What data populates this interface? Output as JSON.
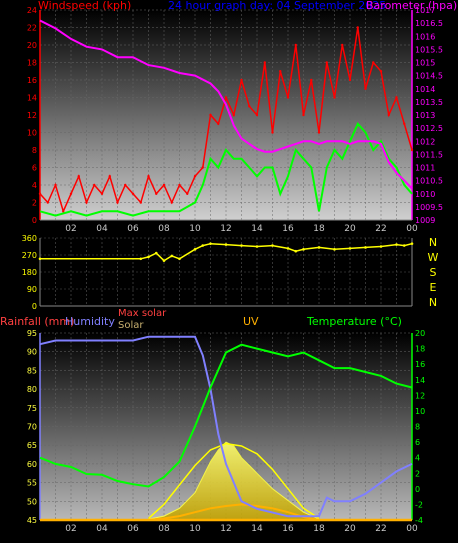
{
  "header": {
    "left_label": "Windspeed (kph)",
    "center_label": "24 hour graph day:  04 September 2025",
    "right_label": "Barometer (hpa)"
  },
  "colors": {
    "windspeed": "#ff0000",
    "windspeed_avg": "#00ff00",
    "barometer": "#ff00ff",
    "wind_dir": "#ffff00",
    "humidity": "#8080ff",
    "temperature": "#00ff00",
    "uv": "#ffb000",
    "solar": "#ffff40",
    "max_solar": "#ffff00",
    "rainfall": "#ff4040",
    "header_blue": "#0000ff"
  },
  "chart_data": [
    {
      "type": "line",
      "name": "wind-barometer",
      "xticks": [
        "02",
        "04",
        "06",
        "08",
        "10",
        "12",
        "14",
        "16",
        "18",
        "20",
        "22",
        "00"
      ],
      "xlim": [
        0,
        24
      ],
      "ylim_left": [
        0,
        24
      ],
      "yticks_left": [
        "0",
        "2",
        "4",
        "6",
        "8",
        "10",
        "12",
        "14",
        "16",
        "18",
        "20",
        "22",
        "24"
      ],
      "ylim_right": [
        1009,
        1017
      ],
      "yticks_right": [
        "1009",
        "1009.5",
        "1010",
        "1010.5",
        "1011",
        "1011.5",
        "1012",
        "1012.5",
        "1013",
        "1013.5",
        "1014",
        "1014.5",
        "1015",
        "1015.5",
        "1016",
        "1016.5",
        "1017"
      ],
      "series": [
        {
          "name": "Windspeed (kph)",
          "x": [
            0,
            0.5,
            1,
            1.5,
            2,
            2.5,
            3,
            3.5,
            4,
            4.5,
            5,
            5.5,
            6,
            6.5,
            7,
            7.5,
            8,
            8.5,
            9,
            9.5,
            10,
            10.5,
            11,
            11.5,
            12,
            12.5,
            13,
            13.5,
            14,
            14.5,
            15,
            15.5,
            16,
            16.5,
            17,
            17.5,
            18,
            18.5,
            19,
            19.5,
            20,
            20.5,
            21,
            21.5,
            22,
            22.5,
            23,
            23.5,
            24
          ],
          "values": [
            3,
            2,
            4,
            1,
            3,
            5,
            2,
            4,
            3,
            5,
            2,
            4,
            3,
            2,
            5,
            3,
            4,
            2,
            4,
            3,
            5,
            6,
            12,
            11,
            14,
            12,
            16,
            13,
            12,
            18,
            10,
            17,
            14,
            20,
            12,
            16,
            10,
            18,
            14,
            20,
            16,
            22,
            15,
            18,
            17,
            12,
            14,
            11,
            8
          ]
        },
        {
          "name": "Windspeed average",
          "x": [
            0,
            1,
            2,
            3,
            4,
            5,
            6,
            7,
            8,
            9,
            10,
            10.5,
            11,
            11.5,
            12,
            12.5,
            13,
            13.5,
            14,
            14.5,
            15,
            15.5,
            16,
            16.5,
            17,
            17.5,
            18,
            18.5,
            19,
            19.5,
            20,
            20.5,
            21,
            21.5,
            22,
            22.5,
            23,
            23.5,
            24
          ],
          "values": [
            1,
            0.5,
            1,
            0.5,
            1,
            1,
            0.5,
            1,
            1,
            1,
            2,
            4,
            7,
            6,
            8,
            7,
            7,
            6,
            5,
            6,
            6,
            3,
            5,
            8,
            7,
            6,
            1,
            6,
            8,
            7,
            9,
            11,
            10,
            8,
            9,
            7,
            6,
            4,
            3
          ]
        },
        {
          "name": "Barometer (hpa)",
          "x": [
            0,
            1,
            2,
            3,
            4,
            5,
            6,
            7,
            8,
            9,
            10,
            11,
            11.5,
            12,
            12.5,
            13,
            13.5,
            14,
            14.5,
            15,
            15.5,
            16,
            16.5,
            17,
            17.5,
            18,
            18.5,
            19,
            19.5,
            20,
            20.5,
            21,
            21.5,
            22,
            22.5,
            23,
            23.5,
            24
          ],
          "values": [
            1016.6,
            1016.3,
            1015.9,
            1015.6,
            1015.5,
            1015.2,
            1015.2,
            1014.9,
            1014.8,
            1014.6,
            1014.5,
            1014.2,
            1013.9,
            1013.4,
            1012.6,
            1012.1,
            1011.9,
            1011.7,
            1011.6,
            1011.6,
            1011.7,
            1011.8,
            1011.9,
            1012.0,
            1012.0,
            1011.9,
            1012.0,
            1012.0,
            1012.0,
            1011.9,
            1012.0,
            1012.0,
            1012.0,
            1011.9,
            1011.2,
            1010.8,
            1010.5,
            1010.2
          ]
        }
      ]
    },
    {
      "type": "line",
      "name": "wind-direction",
      "xlim": [
        0,
        24
      ],
      "ylim": [
        0,
        360
      ],
      "yticks": [
        "0",
        "90",
        "180",
        "270",
        "360"
      ],
      "compass": [
        "N",
        "W",
        "S",
        "E",
        "N"
      ],
      "series": [
        {
          "name": "Wind direction",
          "x": [
            0,
            6.5,
            7,
            7.5,
            8,
            8.5,
            9,
            10,
            10.5,
            11,
            12,
            13,
            14,
            15,
            16,
            16.5,
            17,
            18,
            19,
            20,
            21,
            22,
            23,
            23.5,
            24
          ],
          "values": [
            250,
            250,
            260,
            280,
            240,
            265,
            250,
            300,
            320,
            330,
            325,
            320,
            315,
            320,
            305,
            290,
            300,
            310,
            300,
            305,
            310,
            315,
            325,
            320,
            330
          ]
        }
      ]
    },
    {
      "type": "line",
      "name": "humidity-temperature",
      "xticks": [
        "02",
        "04",
        "06",
        "08",
        "10",
        "12",
        "14",
        "16",
        "18",
        "20",
        "22",
        "00"
      ],
      "xlim": [
        0,
        24
      ],
      "labels": {
        "rainfall": "Rainfall (mm)",
        "humidity": "Humidity",
        "max_solar": "Max solar",
        "solar": "Solar",
        "uv": "UV",
        "temperature": "Temperature (°C)"
      },
      "ylim_left": [
        45,
        95
      ],
      "yticks_left": [
        "45",
        "50",
        "55",
        "60",
        "65",
        "70",
        "75",
        "80",
        "85",
        "90",
        "95"
      ],
      "ylim_right": [
        -4,
        20
      ],
      "yticks_right": [
        "-4",
        "-2",
        "0",
        "2",
        "4",
        "6",
        "8",
        "10",
        "12",
        "14",
        "16",
        "18",
        "20"
      ],
      "series": [
        {
          "name": "Humidity",
          "x": [
            0,
            1,
            2,
            4,
            6,
            7,
            8,
            9,
            10,
            10.5,
            11,
            11.5,
            12,
            12.5,
            13,
            14,
            15,
            16,
            17,
            18,
            18.5,
            19,
            20,
            21,
            22,
            23,
            24
          ],
          "values": [
            92,
            93,
            93,
            93,
            93,
            94,
            94,
            94,
            94,
            89,
            80,
            68,
            60,
            55,
            50,
            48,
            47,
            46,
            46,
            46,
            51,
            50,
            50,
            52,
            55,
            58,
            60
          ]
        },
        {
          "name": "Temperature (°C)",
          "x": [
            0,
            1,
            2,
            3,
            4,
            5,
            6,
            7,
            8,
            9,
            10,
            11,
            12,
            13,
            14,
            15,
            16,
            17,
            18,
            19,
            20,
            21,
            22,
            23,
            24
          ],
          "values": [
            4,
            3.2,
            2.8,
            1.9,
            1.8,
            1.0,
            0.6,
            0.3,
            1.5,
            3.5,
            8,
            13,
            17.5,
            18.5,
            18,
            17.5,
            17,
            17.5,
            16.5,
            15.5,
            15.5,
            15,
            14.5,
            13.5,
            13
          ]
        },
        {
          "name": "Max solar",
          "x": [
            7,
            8,
            9,
            10,
            11,
            12,
            13,
            14,
            15,
            16,
            17,
            18
          ],
          "values": [
            -3.8,
            -2,
            0.5,
            3,
            5,
            5.8,
            5.5,
            4.5,
            2.5,
            0,
            -2.5,
            -3.8
          ]
        },
        {
          "name": "Solar",
          "x": [
            7,
            8,
            9,
            10,
            10.5,
            11,
            11.5,
            12,
            12.5,
            13,
            13.5,
            14,
            15,
            16,
            17,
            18
          ],
          "values": [
            -3.9,
            -3.5,
            -2.5,
            -0.5,
            1.5,
            3.5,
            5,
            6,
            5.5,
            4,
            3,
            2,
            0,
            -1.5,
            -3,
            -3.9
          ]
        },
        {
          "name": "UV",
          "x": [
            7,
            8,
            9,
            10,
            11,
            12,
            13,
            14,
            15,
            16,
            17,
            18
          ],
          "values": [
            -4,
            -3.8,
            -3.5,
            -3,
            -2.5,
            -2.2,
            -2,
            -2.2,
            -2.5,
            -3,
            -3.6,
            -4
          ]
        },
        {
          "name": "Rainfall (mm)",
          "x": [
            0,
            24
          ],
          "values": [
            0,
            0
          ]
        }
      ]
    }
  ]
}
